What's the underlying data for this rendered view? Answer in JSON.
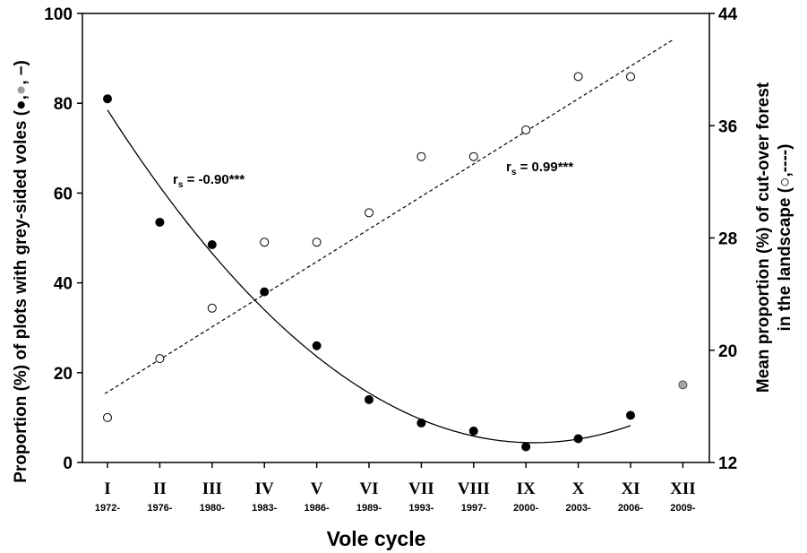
{
  "chart_data": {
    "type": "scatter",
    "xlabel": "Vole cycle",
    "ylabel_left": "Proportion (%) of plots with grey-sided voles (●,",
    "ylabel_left_tail": ", –)",
    "ylabel_right_line1": "Mean proportion (%) of cut-over forest",
    "ylabel_right_line2": "in the landscape (",
    "ylabel_right_tail": ",----)",
    "ylim_left": [
      0,
      100
    ],
    "ylim_right": [
      12,
      44
    ],
    "left_ticks": [
      "0",
      "20",
      "40",
      "60",
      "80",
      "100"
    ],
    "right_ticks": [
      "12",
      "20",
      "28",
      "36",
      "44"
    ],
    "categories": [
      {
        "roman": "I",
        "year": "1972-"
      },
      {
        "roman": "II",
        "year": "1976-"
      },
      {
        "roman": "III",
        "year": "1980-"
      },
      {
        "roman": "IV",
        "year": "1983-"
      },
      {
        "roman": "V",
        "year": "1986-"
      },
      {
        "roman": "VI",
        "year": "1989-"
      },
      {
        "roman": "VII",
        "year": "1993-"
      },
      {
        "roman": "VIII",
        "year": "1997-"
      },
      {
        "roman": "IX",
        "year": "2000-"
      },
      {
        "roman": "X",
        "year": "2003-"
      },
      {
        "roman": "XI",
        "year": "2006-"
      },
      {
        "roman": "XII",
        "year": "2009-"
      }
    ],
    "series": [
      {
        "axis": "left",
        "marker": "filled-black",
        "values": [
          81,
          53.5,
          48.5,
          38,
          26,
          14,
          8.8,
          7,
          3.5,
          5.3,
          10.5,
          null
        ]
      },
      {
        "axis": "left",
        "marker": "filled-grey",
        "values": [
          null,
          null,
          null,
          null,
          null,
          null,
          null,
          null,
          null,
          null,
          null,
          17.3
        ]
      },
      {
        "axis": "right",
        "marker": "open-circle",
        "values": [
          15.2,
          19.4,
          23,
          27.7,
          27.7,
          29.8,
          33.8,
          33.8,
          35.7,
          39.5,
          39.5,
          null
        ]
      }
    ],
    "fits": [
      {
        "axis": "left",
        "style": "solid",
        "kind": "quadratic",
        "x_from": 1,
        "x_to": 11,
        "y_at_start": 78.5,
        "y_at_vertex": 4.4,
        "vertex_x": 9.15,
        "y_at_end": 9
      },
      {
        "axis": "right",
        "style": "dashed",
        "kind": "linear",
        "x_from": 0.95,
        "x_to": 11.8,
        "y_at_start": 16.9,
        "y_at_end": 42.1
      }
    ],
    "annotations": [
      {
        "text_main": "r",
        "text_sub": "s",
        "text_rest": " = -0.90***"
      },
      {
        "text_main": "r",
        "text_sub": "s",
        "text_rest": " = 0.99***"
      }
    ]
  }
}
